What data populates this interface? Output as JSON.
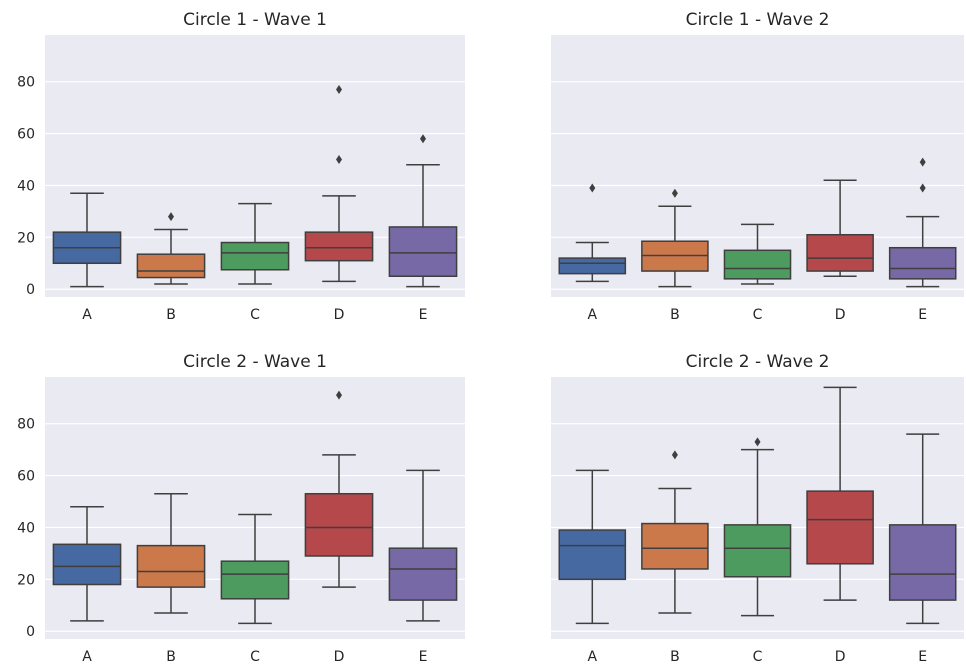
{
  "chart_data": [
    {
      "type": "box",
      "title": "Circle 1 - Wave 1",
      "categories": [
        "A",
        "B",
        "C",
        "D",
        "E"
      ],
      "colors": [
        "#4c72b0",
        "#dd8452",
        "#55a868",
        "#c44e52",
        "#8172b3"
      ],
      "ylim": [
        -3,
        98
      ],
      "yticks": [
        0,
        20,
        40,
        60,
        80
      ],
      "show_yticklabels": true,
      "grid": true,
      "boxes": [
        {
          "whislo": 1,
          "q1": 10,
          "med": 16,
          "q3": 22,
          "whishi": 37,
          "fliers": []
        },
        {
          "whislo": 2,
          "q1": 4.5,
          "med": 7,
          "q3": 13.5,
          "whishi": 23,
          "fliers": [
            28
          ]
        },
        {
          "whislo": 2,
          "q1": 7.5,
          "med": 14,
          "q3": 18,
          "whishi": 33,
          "fliers": []
        },
        {
          "whislo": 3,
          "q1": 11,
          "med": 16,
          "q3": 22,
          "whishi": 36,
          "fliers": [
            50,
            77
          ]
        },
        {
          "whislo": 1,
          "q1": 5,
          "med": 14,
          "q3": 24,
          "whishi": 48,
          "fliers": [
            58
          ]
        }
      ]
    },
    {
      "type": "box",
      "title": "Circle 1 - Wave 2",
      "categories": [
        "A",
        "B",
        "C",
        "D",
        "E"
      ],
      "colors": [
        "#4c72b0",
        "#dd8452",
        "#55a868",
        "#c44e52",
        "#8172b3"
      ],
      "ylim": [
        -3,
        98
      ],
      "yticks": [
        0,
        20,
        40,
        60,
        80
      ],
      "show_yticklabels": false,
      "grid": true,
      "boxes": [
        {
          "whislo": 3,
          "q1": 6,
          "med": 10,
          "q3": 12,
          "whishi": 18,
          "fliers": [
            39
          ]
        },
        {
          "whislo": 1,
          "q1": 7,
          "med": 13,
          "q3": 18.5,
          "whishi": 32,
          "fliers": [
            37
          ]
        },
        {
          "whislo": 2,
          "q1": 4,
          "med": 8,
          "q3": 15,
          "whishi": 25,
          "fliers": []
        },
        {
          "whislo": 5,
          "q1": 7,
          "med": 12,
          "q3": 21,
          "whishi": 42,
          "fliers": []
        },
        {
          "whislo": 1,
          "q1": 4,
          "med": 8,
          "q3": 16,
          "whishi": 28,
          "fliers": [
            39,
            49
          ]
        }
      ]
    },
    {
      "type": "box",
      "title": "Circle 2 - Wave 1",
      "categories": [
        "A",
        "B",
        "C",
        "D",
        "E"
      ],
      "colors": [
        "#4c72b0",
        "#dd8452",
        "#55a868",
        "#c44e52",
        "#8172b3"
      ],
      "ylim": [
        -3,
        98
      ],
      "yticks": [
        0,
        20,
        40,
        60,
        80
      ],
      "show_yticklabels": true,
      "grid": true,
      "boxes": [
        {
          "whislo": 4,
          "q1": 18,
          "med": 25,
          "q3": 33.5,
          "whishi": 48,
          "fliers": []
        },
        {
          "whislo": 7,
          "q1": 17,
          "med": 23,
          "q3": 33,
          "whishi": 53,
          "fliers": []
        },
        {
          "whislo": 3,
          "q1": 12.5,
          "med": 22,
          "q3": 27,
          "whishi": 45,
          "fliers": []
        },
        {
          "whislo": 17,
          "q1": 29,
          "med": 40,
          "q3": 53,
          "whishi": 68,
          "fliers": [
            91
          ]
        },
        {
          "whislo": 4,
          "q1": 12,
          "med": 24,
          "q3": 32,
          "whishi": 62,
          "fliers": []
        }
      ]
    },
    {
      "type": "box",
      "title": "Circle 2 - Wave 2",
      "categories": [
        "A",
        "B",
        "C",
        "D",
        "E"
      ],
      "colors": [
        "#4c72b0",
        "#dd8452",
        "#55a868",
        "#c44e52",
        "#8172b3"
      ],
      "ylim": [
        -3,
        98
      ],
      "yticks": [
        0,
        20,
        40,
        60,
        80
      ],
      "show_yticklabels": false,
      "grid": true,
      "boxes": [
        {
          "whislo": 3,
          "q1": 20,
          "med": 33,
          "q3": 39,
          "whishi": 62,
          "fliers": []
        },
        {
          "whislo": 7,
          "q1": 24,
          "med": 32,
          "q3": 41.5,
          "whishi": 55,
          "fliers": [
            68
          ]
        },
        {
          "whislo": 6,
          "q1": 21,
          "med": 32,
          "q3": 41,
          "whishi": 70,
          "fliers": [
            73
          ]
        },
        {
          "whislo": 12,
          "q1": 26,
          "med": 43,
          "q3": 54,
          "whishi": 94,
          "fliers": []
        },
        {
          "whislo": 3,
          "q1": 12,
          "med": 22,
          "q3": 41,
          "whishi": 76,
          "fliers": []
        }
      ]
    }
  ]
}
